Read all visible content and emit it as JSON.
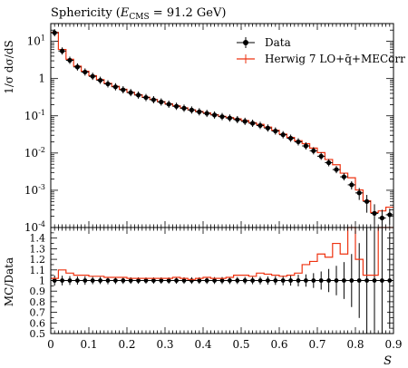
{
  "chart_data": {
    "type": "line",
    "title": "Sphericity (E_CMS = 91.2 GeV)",
    "title_parts": {
      "prefix": "Sphericity (",
      "e": "E",
      "sub": "CMS",
      "suffix": " = 91.2 GeV)"
    },
    "xlabel": "S",
    "ylabel": "1/σ dσ/dS",
    "ratio_ylabel": "MC/Data",
    "xlim": [
      0,
      0.9
    ],
    "ylim": [
      0.0001,
      30
    ],
    "yscale": "log",
    "ratio_ylim": [
      0.5,
      1.5
    ],
    "x_ticks": [
      "0",
      "0.1",
      "0.2",
      "0.3",
      "0.4",
      "0.5",
      "0.6",
      "0.7",
      "0.8",
      "0.9"
    ],
    "y_ticks": [
      "10^1",
      "1",
      "10^-1",
      "10^-2",
      "10^-3",
      "10^-4"
    ],
    "ratio_ticks": [
      "0.5",
      "0.6",
      "0.7",
      "0.8",
      "0.9",
      "1",
      "1.1",
      "1.2",
      "1.3",
      "1.4"
    ],
    "legend_position": "top-right",
    "bin_edges": [
      0,
      0.02,
      0.04,
      0.06,
      0.08,
      0.1,
      0.12,
      0.14,
      0.16,
      0.18,
      0.2,
      0.22,
      0.24,
      0.26,
      0.28,
      0.3,
      0.32,
      0.34,
      0.36,
      0.38,
      0.4,
      0.42,
      0.44,
      0.46,
      0.48,
      0.5,
      0.52,
      0.54,
      0.56,
      0.58,
      0.6,
      0.62,
      0.64,
      0.66,
      0.68,
      0.7,
      0.72,
      0.74,
      0.76,
      0.78,
      0.8,
      0.82,
      0.84,
      0.86,
      0.88,
      0.9
    ],
    "series": [
      {
        "name": "Data",
        "color": "#000000",
        "marker": "circle",
        "values": [
          17,
          5.5,
          3.1,
          2.05,
          1.5,
          1.15,
          0.9,
          0.72,
          0.6,
          0.5,
          0.42,
          0.36,
          0.31,
          0.27,
          0.235,
          0.205,
          0.18,
          0.16,
          0.143,
          0.128,
          0.116,
          0.105,
          0.095,
          0.087,
          0.079,
          0.071,
          0.063,
          0.055,
          0.047,
          0.039,
          0.031,
          0.025,
          0.02,
          0.0155,
          0.0115,
          0.0082,
          0.0055,
          0.0036,
          0.0023,
          0.0014,
          0.00085,
          0.0005,
          0.00024,
          0.00018,
          0.00022
        ],
        "errors": [
          0.8,
          0.25,
          0.13,
          0.08,
          0.06,
          0.04,
          0.03,
          0.025,
          0.02,
          0.016,
          0.013,
          0.011,
          0.009,
          0.008,
          0.007,
          0.006,
          0.0055,
          0.005,
          0.0045,
          0.004,
          0.0037,
          0.0034,
          0.0031,
          0.0029,
          0.0026,
          0.0024,
          0.0022,
          0.002,
          0.0018,
          0.0016,
          0.0014,
          0.0012,
          0.0011,
          0.0009,
          0.0008,
          0.0007,
          0.0006,
          0.0005,
          0.0004,
          0.00035,
          0.0003,
          0.00025,
          0.00018,
          0.00012,
          0.0001
        ]
      },
      {
        "name": "Herwig 7 LO+q̄+MECorr",
        "color": "#ee3311",
        "marker": "step",
        "ratio": [
          1.02,
          1.1,
          1.07,
          1.05,
          1.05,
          1.04,
          1.04,
          1.03,
          1.03,
          1.03,
          1.02,
          1.02,
          1.02,
          1.02,
          1.02,
          1.02,
          1.03,
          1.02,
          1.01,
          1.02,
          1.03,
          1.02,
          1.02,
          1.03,
          1.05,
          1.05,
          1.04,
          1.07,
          1.06,
          1.05,
          1.04,
          1.05,
          1.07,
          1.15,
          1.18,
          1.25,
          1.22,
          1.35,
          1.25,
          1.55,
          1.2,
          1.05,
          1.05,
          1.55,
          1.6
        ]
      }
    ]
  }
}
